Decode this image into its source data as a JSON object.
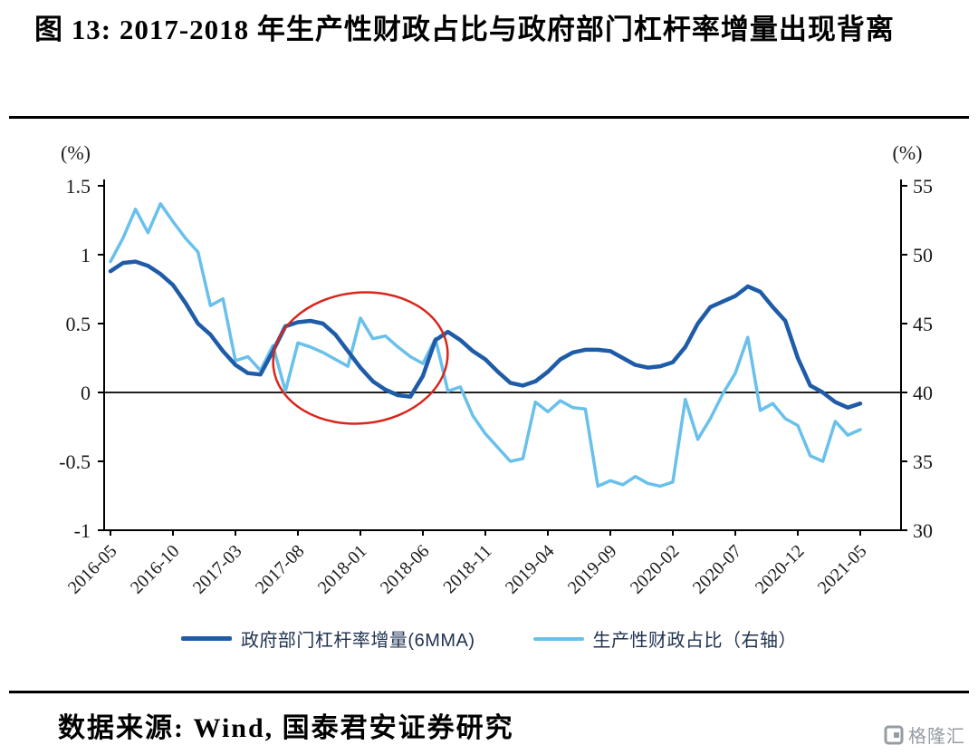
{
  "page": {
    "title": "图 13: 2017-2018 年生产性财政占比与政府部门杠杆率增量出现背离",
    "source_line": "数据来源: Wind, 国泰君安证券研究",
    "watermark_label": "格隆汇"
  },
  "chart_data": {
    "type": "line",
    "title": "2017-2018 年生产性财政占比与政府部门杠杆率增量出现背离",
    "grid": false,
    "legend_position": "bottom",
    "left_axis": {
      "unit_label": "(%)",
      "min": -1,
      "max": 1.5,
      "ticks": [
        1.5,
        1,
        0.5,
        0,
        -0.5,
        -1
      ]
    },
    "right_axis": {
      "unit_label": "(%)",
      "min": 30,
      "max": 55,
      "ticks": [
        55,
        50,
        45,
        40,
        35,
        30
      ]
    },
    "x_tick_labels": [
      "2016-05",
      "2016-10",
      "2017-03",
      "2017-08",
      "2018-01",
      "2018-06",
      "2018-11",
      "2019-04",
      "2019-09",
      "2020-02",
      "2020-07",
      "2020-12",
      "2021-05"
    ],
    "months": [
      "2016-05",
      "2016-06",
      "2016-07",
      "2016-08",
      "2016-09",
      "2016-10",
      "2016-11",
      "2016-12",
      "2017-01",
      "2017-02",
      "2017-03",
      "2017-04",
      "2017-05",
      "2017-06",
      "2017-07",
      "2017-08",
      "2017-09",
      "2017-10",
      "2017-11",
      "2017-12",
      "2018-01",
      "2018-02",
      "2018-03",
      "2018-04",
      "2018-05",
      "2018-06",
      "2018-07",
      "2018-08",
      "2018-09",
      "2018-10",
      "2018-11",
      "2018-12",
      "2019-01",
      "2019-02",
      "2019-03",
      "2019-04",
      "2019-05",
      "2019-06",
      "2019-07",
      "2019-08",
      "2019-09",
      "2019-10",
      "2019-11",
      "2019-12",
      "2020-01",
      "2020-02",
      "2020-03",
      "2020-04",
      "2020-05",
      "2020-06",
      "2020-07",
      "2020-08",
      "2020-09",
      "2020-10",
      "2020-11",
      "2020-12",
      "2021-01",
      "2021-02",
      "2021-03",
      "2021-04",
      "2021-05"
    ],
    "series": [
      {
        "name": "政府部门杠杆率增量(6MMA)",
        "axis": "left",
        "color": "#1E5CA8",
        "width": 4.5,
        "values": [
          0.88,
          0.94,
          0.95,
          0.92,
          0.86,
          0.78,
          0.65,
          0.5,
          0.42,
          0.3,
          0.2,
          0.14,
          0.13,
          0.3,
          0.48,
          0.51,
          0.52,
          0.5,
          0.42,
          0.3,
          0.18,
          0.08,
          0.02,
          -0.02,
          -0.03,
          0.12,
          0.38,
          0.44,
          0.38,
          0.3,
          0.24,
          0.15,
          0.07,
          0.05,
          0.08,
          0.15,
          0.24,
          0.29,
          0.31,
          0.31,
          0.3,
          0.25,
          0.2,
          0.18,
          0.19,
          0.22,
          0.33,
          0.5,
          0.62,
          0.66,
          0.7,
          0.77,
          0.73,
          0.62,
          0.52,
          0.25,
          0.05,
          0.0,
          -0.07,
          -0.11,
          -0.08
        ]
      },
      {
        "name": "生产性财政占比（右轴）",
        "axis": "right",
        "color": "#68C0EB",
        "width": 3.5,
        "values": [
          49.5,
          51.2,
          53.3,
          51.6,
          53.7,
          52.4,
          51.2,
          50.2,
          46.3,
          46.8,
          42.3,
          42.6,
          41.6,
          43.4,
          40.1,
          43.6,
          43.3,
          42.9,
          42.4,
          41.9,
          45.4,
          43.9,
          44.1,
          43.3,
          42.6,
          42.1,
          43.9,
          40.1,
          40.4,
          38.3,
          37.0,
          36.0,
          35.0,
          35.2,
          39.3,
          38.6,
          39.4,
          38.9,
          38.8,
          33.2,
          33.6,
          33.3,
          33.9,
          33.4,
          33.2,
          33.5,
          39.5,
          36.6,
          38.1,
          39.9,
          41.4,
          44.0,
          38.7,
          39.2,
          38.1,
          37.6,
          35.4,
          35.0,
          37.9,
          36.9,
          37.3
        ]
      }
    ],
    "annotation_ellipse": {
      "note": "红圈标注2017-2018年背离区间",
      "color": "#D9261C",
      "center_month_index": 20,
      "span_months": 14,
      "center_value_left_axis": 0.25,
      "span_value_left_axis": 0.95,
      "tilt_deg": -6
    }
  }
}
